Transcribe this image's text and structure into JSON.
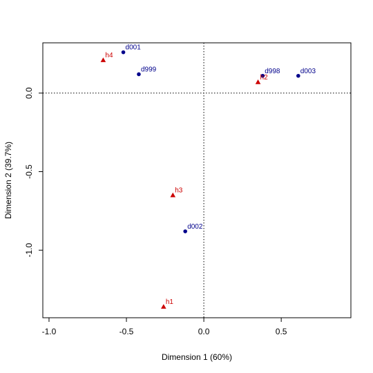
{
  "chart_data": {
    "type": "scatter",
    "xlabel": "Dimension 1 (60%)",
    "ylabel": "Dimension 2 (39.7%)",
    "xlim": [
      -1.04,
      0.95
    ],
    "ylim": [
      -1.43,
      0.32
    ],
    "x_ticks": [
      {
        "value": -1.0,
        "label": "-1.0"
      },
      {
        "value": -0.5,
        "label": "-0.5"
      },
      {
        "value": 0.0,
        "label": "0.0"
      },
      {
        "value": 0.5,
        "label": "0.5"
      }
    ],
    "y_ticks": [
      {
        "value": 0.0,
        "label": "0.0"
      },
      {
        "value": -0.5,
        "label": "-0.5"
      },
      {
        "value": -1.0,
        "label": "-1.0"
      }
    ],
    "reference_lines": {
      "x": 0,
      "y": 0,
      "style": "dotted"
    },
    "grid": false,
    "series": [
      {
        "marker": "circle",
        "color": "#00008b",
        "points": [
          {
            "label": "d001",
            "x": -0.52,
            "y": 0.26
          },
          {
            "label": "d999",
            "x": -0.42,
            "y": 0.12
          },
          {
            "label": "d998",
            "x": 0.38,
            "y": 0.11
          },
          {
            "label": "d003",
            "x": 0.61,
            "y": 0.11
          },
          {
            "label": "d002",
            "x": -0.12,
            "y": -0.88
          }
        ]
      },
      {
        "marker": "triangle",
        "color": "#cc0000",
        "points": [
          {
            "label": "h4",
            "x": -0.65,
            "y": 0.21
          },
          {
            "label": "h2",
            "x": 0.35,
            "y": 0.07
          },
          {
            "label": "h3",
            "x": -0.2,
            "y": -0.65
          },
          {
            "label": "h1",
            "x": -0.26,
            "y": -1.36
          }
        ]
      }
    ]
  }
}
